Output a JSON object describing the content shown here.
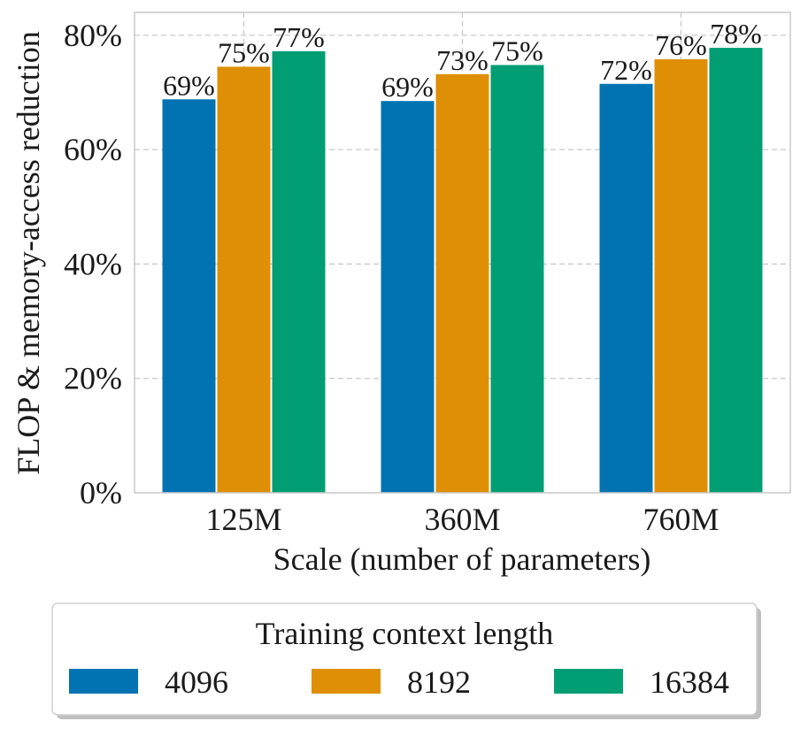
{
  "chart_data": {
    "type": "bar",
    "title": "",
    "xlabel": "Scale (number of parameters)",
    "ylabel": "FLOP & memory-access reduction",
    "categories": [
      "125M",
      "360M",
      "760M"
    ],
    "ylim": [
      0,
      84
    ],
    "yticks": [
      0,
      20,
      40,
      60,
      80
    ],
    "ytick_labels": [
      "0%",
      "20%",
      "40%",
      "60%",
      "80%"
    ],
    "grid": true,
    "legend": {
      "title": "Training context length",
      "placement": "bottom"
    },
    "series": [
      {
        "name": "4096",
        "color": "#0173b2",
        "values": [
          68.8,
          68.5,
          71.5
        ],
        "labels": [
          "69%",
          "69%",
          "72%"
        ]
      },
      {
        "name": "8192",
        "color": "#de8f05",
        "values": [
          74.5,
          73.2,
          75.8
        ],
        "labels": [
          "75%",
          "73%",
          "76%"
        ]
      },
      {
        "name": "16384",
        "color": "#029e73",
        "values": [
          77.2,
          74.8,
          77.8
        ],
        "labels": [
          "77%",
          "75%",
          "78%"
        ]
      }
    ]
  }
}
